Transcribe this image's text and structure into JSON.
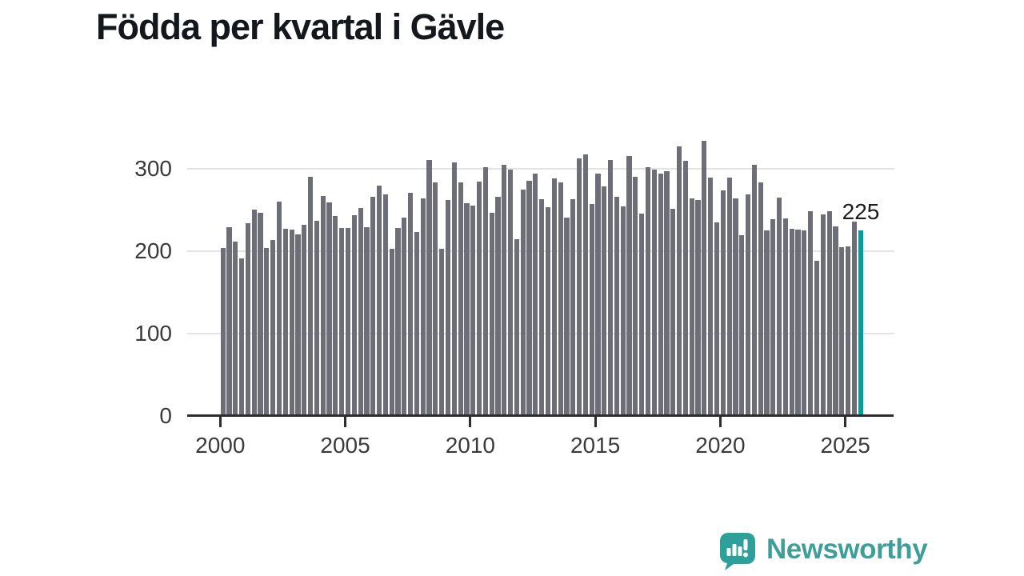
{
  "page": {
    "title": "Födda per kvartal i Gävle"
  },
  "chart_data": {
    "type": "bar",
    "title": "Födda per kvartal i Gävle",
    "grid": "horizontal",
    "legend": false,
    "bar_color": "#6e6e78",
    "highlight_color": "#00a09a",
    "x_axis": {
      "tick_labels": [
        "2000",
        "2005",
        "2010",
        "2015",
        "2020",
        "2025"
      ],
      "tick_years": [
        2000,
        2005,
        2010,
        2015,
        2020,
        2025
      ],
      "start_period": "2000 Q1",
      "end_period": "2025 Q3",
      "frequency": "quarterly"
    },
    "y_axis": {
      "tick_labels": [
        "0",
        "100",
        "200",
        "300"
      ],
      "ticks": [
        0,
        100,
        200,
        300
      ],
      "ylim": [
        0,
        340
      ]
    },
    "highlight": {
      "period": "2025 Q3",
      "value": 225,
      "label": "225"
    },
    "series": [
      {
        "name": "Födda per kvartal",
        "start_year": 2000,
        "start_quarter": 1,
        "values": [
          204,
          229,
          212,
          191,
          234,
          250,
          247,
          204,
          213,
          260,
          227,
          226,
          220,
          232,
          290,
          237,
          267,
          259,
          243,
          228,
          228,
          244,
          252,
          229,
          266,
          280,
          269,
          203,
          228,
          241,
          271,
          223,
          264,
          311,
          283,
          203,
          262,
          308,
          283,
          258,
          255,
          284,
          302,
          247,
          266,
          305,
          299,
          214,
          275,
          285,
          294,
          263,
          253,
          288,
          283,
          241,
          263,
          313,
          318,
          257,
          294,
          279,
          311,
          266,
          254,
          316,
          290,
          246,
          302,
          299,
          294,
          297,
          251,
          327,
          310,
          264,
          262,
          334,
          289,
          235,
          274,
          289,
          264,
          219,
          269,
          305,
          283,
          225,
          239,
          265,
          240,
          227,
          226,
          225,
          248,
          188,
          245,
          248,
          230,
          205,
          206,
          236,
          225
        ]
      }
    ]
  },
  "annotation": {
    "label": "225"
  },
  "branding": {
    "wordmark": "Newsworthy",
    "logo_icon": "speech-bubble-bar-chart-icon",
    "wordmark_color": "#3f9e9a",
    "bubble_color": "#2da09a"
  }
}
